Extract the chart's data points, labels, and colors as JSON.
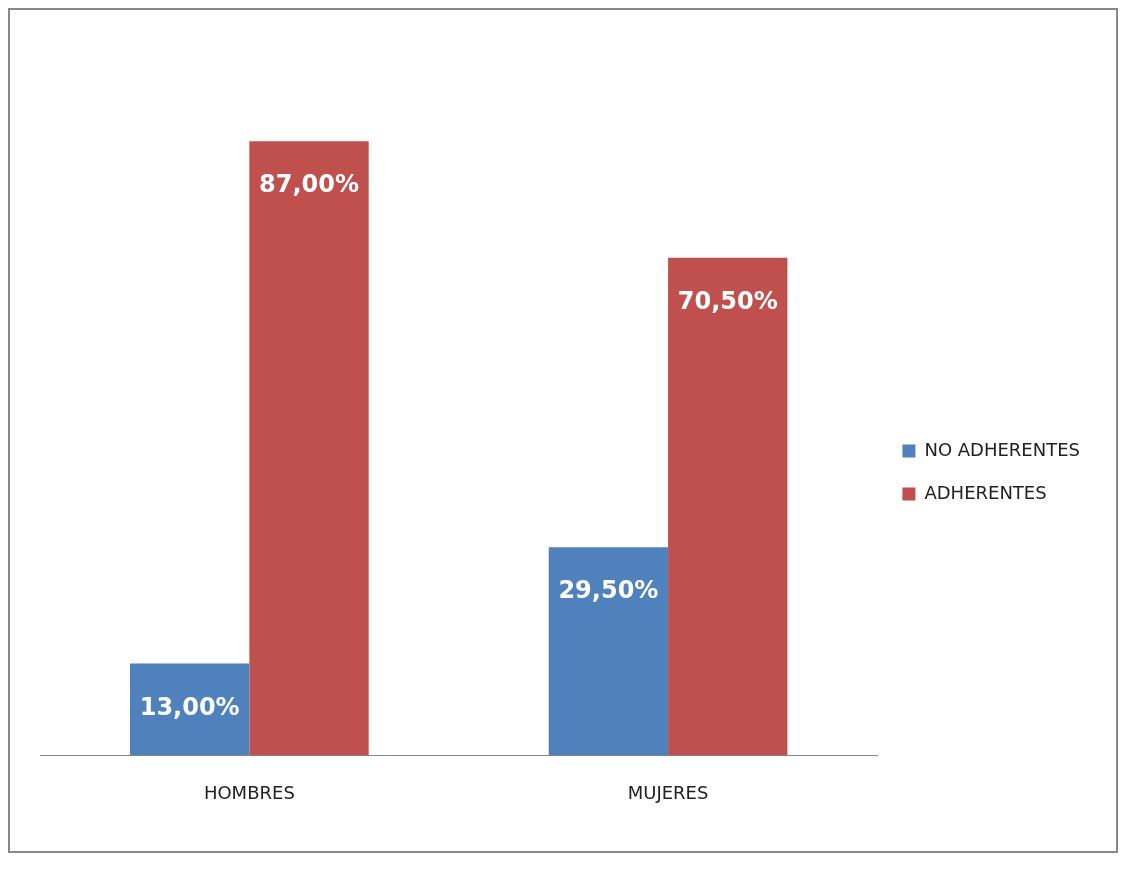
{
  "chart_data": {
    "type": "bar",
    "categories": [
      "HOMBRES",
      "MUJERES"
    ],
    "series": [
      {
        "name": "NO ADHERENTES",
        "color": "#4f81bd",
        "values": [
          13,
          29.5
        ],
        "value_labels": [
          "13,00%",
          "29,50%"
        ]
      },
      {
        "name": "ADHERENTES",
        "color": "#c0504d",
        "values": [
          87,
          70.5
        ],
        "value_labels": [
          "87,00%",
          "70,50%"
        ]
      }
    ],
    "legend": "right",
    "grid": false
  }
}
